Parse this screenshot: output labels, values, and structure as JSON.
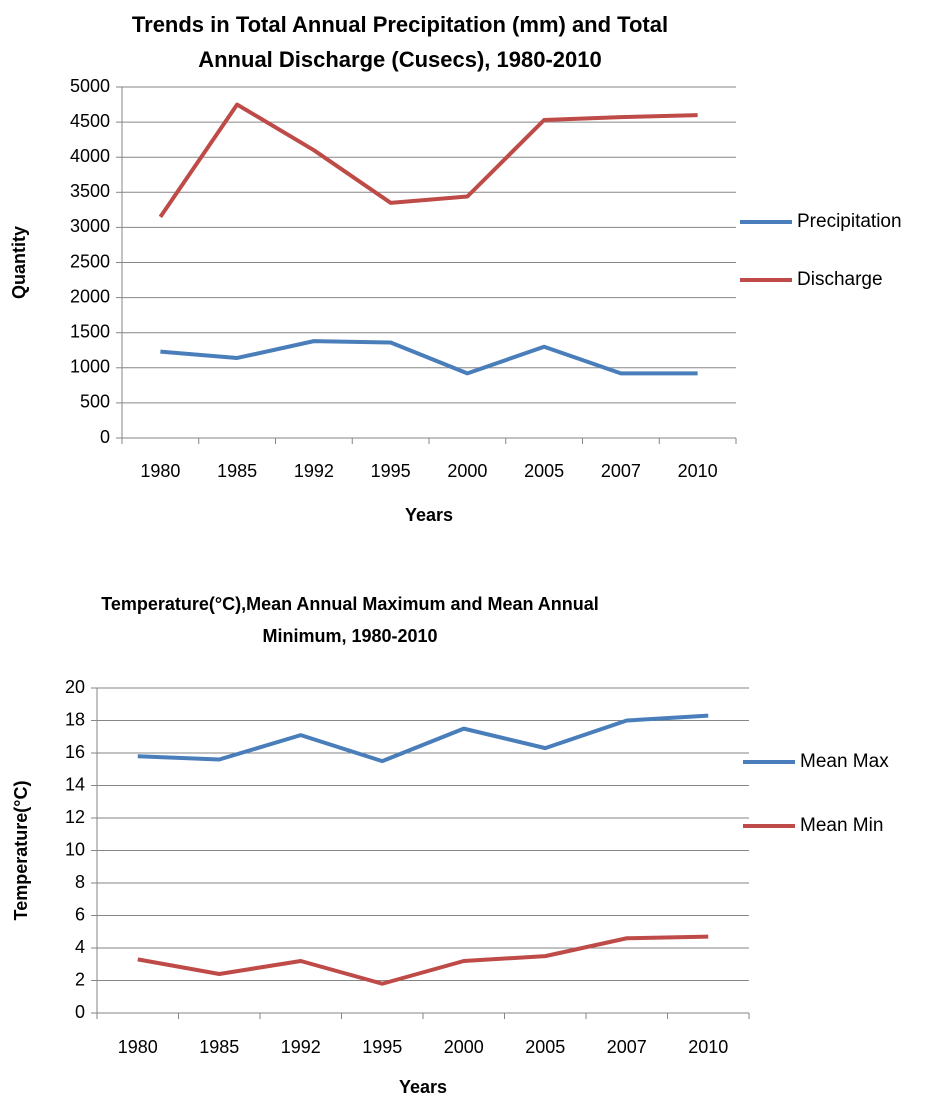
{
  "chart_data": [
    {
      "type": "line",
      "title": [
        "Trends in Total Annual Precipitation (mm) and Total",
        "Annual Discharge (Cusecs), 1980-2010"
      ],
      "x_label": "Years",
      "y_label": "Quantity",
      "categories": [
        "1980",
        "1985",
        "1992",
        "1995",
        "2000",
        "2005",
        "2007",
        "2010"
      ],
      "series": [
        {
          "name": "Precipitation",
          "color": "#4a7ebb",
          "values": [
            1230,
            1140,
            1380,
            1360,
            920,
            1300,
            920,
            920
          ]
        },
        {
          "name": "Discharge",
          "color": "#be4b48",
          "values": [
            3150,
            4750,
            4100,
            3350,
            3440,
            4530,
            4570,
            4600
          ]
        }
      ],
      "ylim": [
        0,
        5000
      ],
      "yticks": [
        0,
        500,
        1000,
        1500,
        2000,
        2500,
        3000,
        3500,
        4000,
        4500,
        5000
      ],
      "grid": true,
      "legend": "right"
    },
    {
      "type": "line",
      "title": [
        "Temperature(°C),Mean Annual Maximum and Mean Annual",
        "Minimum, 1980-2010"
      ],
      "x_label": "Years",
      "y_label": "Temperature(°C)",
      "categories": [
        "1980",
        "1985",
        "1992",
        "1995",
        "2000",
        "2005",
        "2007",
        "2010"
      ],
      "series": [
        {
          "name": "Mean Max",
          "color": "#4a7ebb",
          "values": [
            15.8,
            15.6,
            17.1,
            15.5,
            17.5,
            16.3,
            18.0,
            18.3
          ]
        },
        {
          "name": "Mean Min",
          "color": "#be4b48",
          "values": [
            3.3,
            2.4,
            3.2,
            1.8,
            3.2,
            3.5,
            4.6,
            4.7
          ]
        }
      ],
      "ylim": [
        0,
        20
      ],
      "yticks": [
        0,
        2,
        4,
        6,
        8,
        10,
        12,
        14,
        16,
        18,
        20
      ],
      "grid": true,
      "legend": "right"
    }
  ]
}
